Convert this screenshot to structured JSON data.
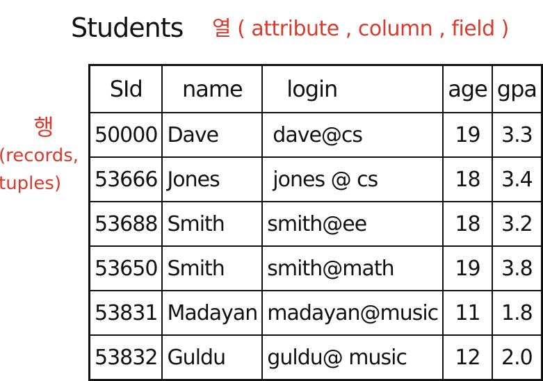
{
  "title": "Students",
  "column_note": "열 ( attribute , column , field )",
  "row_note": {
    "korean": "행",
    "latin_line1": "(records,",
    "latin_line2": "tuples)"
  },
  "table": {
    "headers": [
      "SId",
      "name",
      "login",
      "age",
      "gpa"
    ],
    "rows": [
      [
        "50000",
        "Dave",
        "dave@cs",
        "19",
        "3.3"
      ],
      [
        "53666",
        "Jones",
        "jones @ cs",
        "18",
        "3.4"
      ],
      [
        "53688",
        "Smith",
        "smith@ee",
        "18",
        "3.2"
      ],
      [
        "53650",
        "Smith",
        "smith@math",
        "19",
        "3.8"
      ],
      [
        "53831",
        "Madayan",
        "madayan@music",
        "11",
        "1.8"
      ],
      [
        "53832",
        "Guldu",
        "guldu@ music",
        "12",
        "2.0"
      ]
    ]
  }
}
